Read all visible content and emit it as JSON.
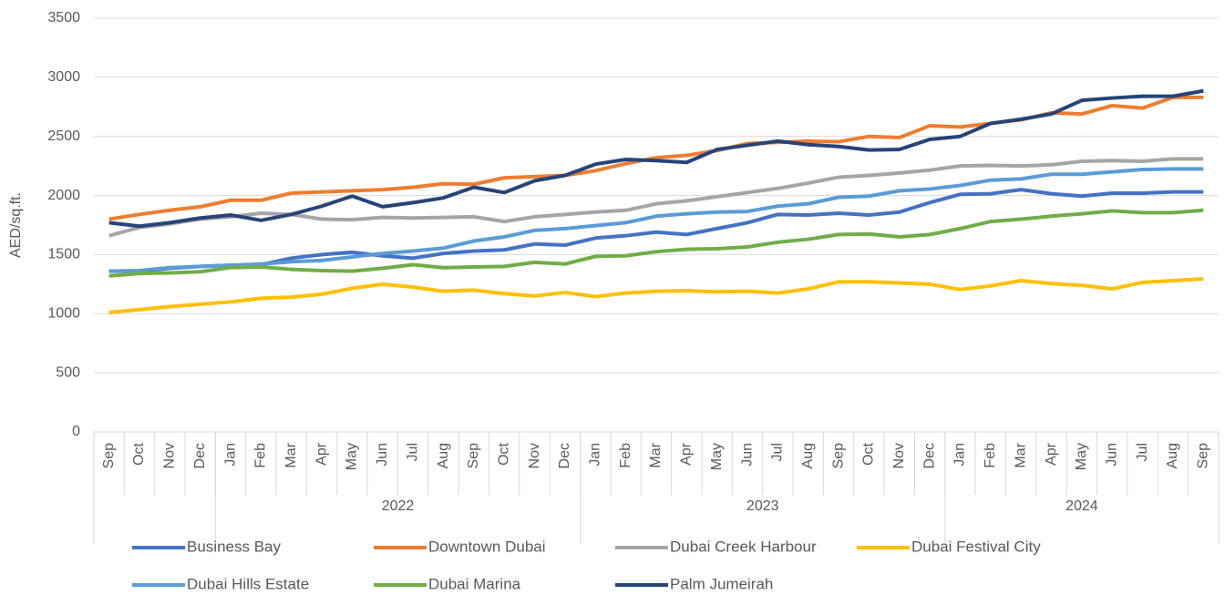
{
  "chart_data": {
    "type": "line",
    "y_label": "AED/sq.ft.",
    "categories": [
      "Sep",
      "Oct",
      "Nov",
      "Dec",
      "Jan",
      "Feb",
      "Mar",
      "Apr",
      "May",
      "Jun",
      "Jul",
      "Aug",
      "Sep",
      "Oct",
      "Nov",
      "Dec",
      "Jan",
      "Feb",
      "Mar",
      "Apr",
      "May",
      "Jun",
      "Jul",
      "Aug",
      "Sep",
      "Oct",
      "Nov",
      "Dec",
      "Jan",
      "Feb",
      "Mar",
      "Apr",
      "May",
      "Jun",
      "Jul",
      "Aug",
      "Sep"
    ],
    "group_labels": [
      null,
      "2022",
      "2023",
      "2024"
    ],
    "group_sizes": [
      4,
      12,
      12,
      9
    ],
    "ylim": [
      0,
      3500
    ],
    "yticks": [
      0,
      500,
      1000,
      1500,
      2000,
      2500,
      3000,
      3500
    ],
    "grid": true,
    "legend": "bottom",
    "series": [
      {
        "name": "Business Bay",
        "color": "#4472c4",
        "values": [
          1360,
          1360,
          1385,
          1400,
          1410,
          1415,
          1470,
          1500,
          1520,
          1490,
          1470,
          1510,
          1530,
          1540,
          1590,
          1580,
          1640,
          1660,
          1690,
          1670,
          1720,
          1770,
          1840,
          1835,
          1850,
          1835,
          1860,
          1940,
          2010,
          2015,
          2050,
          2015,
          1995,
          2020,
          2020,
          2030,
          2030
        ]
      },
      {
        "name": "Downtown Dubai",
        "color": "#ed7d31",
        "values": [
          1800,
          1840,
          1875,
          1905,
          1960,
          1960,
          2020,
          2030,
          2040,
          2050,
          2070,
          2100,
          2095,
          2150,
          2160,
          2170,
          2210,
          2270,
          2320,
          2340,
          2380,
          2440,
          2450,
          2460,
          2455,
          2500,
          2490,
          2590,
          2580,
          2610,
          2640,
          2700,
          2690,
          2760,
          2740,
          2830,
          2830
        ]
      },
      {
        "name": "Dubai Creek Harbour",
        "color": "#a5a5a5",
        "values": [
          1660,
          1730,
          1760,
          1800,
          1820,
          1850,
          1840,
          1800,
          1795,
          1815,
          1810,
          1815,
          1820,
          1780,
          1820,
          1840,
          1860,
          1875,
          1930,
          1955,
          1990,
          2025,
          2060,
          2105,
          2155,
          2170,
          2190,
          2215,
          2250,
          2255,
          2250,
          2260,
          2290,
          2295,
          2290,
          2310,
          2310
        ]
      },
      {
        "name": "Dubai Festival City",
        "color": "#ffc000",
        "values": [
          1010,
          1035,
          1060,
          1080,
          1100,
          1130,
          1140,
          1165,
          1215,
          1250,
          1225,
          1190,
          1200,
          1170,
          1150,
          1180,
          1145,
          1175,
          1190,
          1195,
          1185,
          1190,
          1175,
          1210,
          1270,
          1270,
          1260,
          1250,
          1205,
          1235,
          1280,
          1255,
          1240,
          1210,
          1265,
          1280,
          1295
        ]
      },
      {
        "name": "Dubai Hills Estate",
        "color": "#5b9bd5",
        "values": [
          1360,
          1365,
          1390,
          1400,
          1410,
          1420,
          1440,
          1450,
          1480,
          1510,
          1530,
          1555,
          1615,
          1650,
          1705,
          1720,
          1745,
          1770,
          1825,
          1845,
          1860,
          1865,
          1910,
          1930,
          1985,
          1995,
          2040,
          2055,
          2085,
          2130,
          2140,
          2180,
          2180,
          2200,
          2220,
          2225,
          2225
        ]
      },
      {
        "name": "Dubai Marina",
        "color": "#70ad47",
        "values": [
          1320,
          1340,
          1345,
          1355,
          1390,
          1395,
          1375,
          1365,
          1360,
          1385,
          1415,
          1390,
          1395,
          1400,
          1435,
          1420,
          1485,
          1490,
          1525,
          1545,
          1550,
          1565,
          1605,
          1630,
          1670,
          1675,
          1650,
          1670,
          1720,
          1780,
          1800,
          1825,
          1845,
          1870,
          1855,
          1855,
          1875
        ]
      },
      {
        "name": "Palm Jumeirah",
        "color": "#264478",
        "values": [
          1770,
          1740,
          1770,
          1810,
          1835,
          1790,
          1840,
          1910,
          1995,
          1905,
          1940,
          1980,
          2070,
          2025,
          2125,
          2170,
          2265,
          2305,
          2295,
          2280,
          2390,
          2425,
          2460,
          2430,
          2415,
          2385,
          2390,
          2475,
          2500,
          2610,
          2645,
          2690,
          2805,
          2825,
          2840,
          2840,
          2885
        ]
      }
    ]
  }
}
